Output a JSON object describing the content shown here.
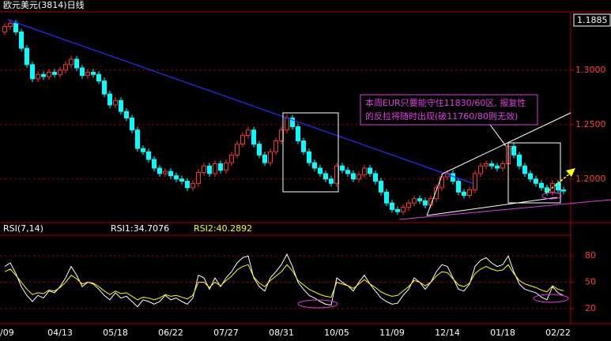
{
  "chart_data": [
    {
      "type": "candlestick",
      "title": "欧元美元(3814)日线",
      "price_box": "1.1885",
      "annotation": [
        "本周EUR只要能守住11830/60区, 报复性",
        "的反拉将随时出现(破11760/80则无效)"
      ],
      "up_color": "#ff3232",
      "down_color": "#00ffff",
      "grid": true,
      "ylim": [
        1.16,
        1.352
      ],
      "yticks": [
        {
          "value": 1.3,
          "label": "1.3000"
        },
        {
          "value": 1.25,
          "label": "1.2500"
        },
        {
          "value": 1.2,
          "label": "1.2000"
        }
      ],
      "open": [
        1.335,
        1.34,
        1.343,
        1.335,
        1.32,
        1.305,
        1.292,
        1.296,
        1.294,
        1.298,
        1.296,
        1.3,
        1.305,
        1.31,
        1.302,
        1.295,
        1.298,
        1.296,
        1.29,
        1.278,
        1.268,
        1.272,
        1.262,
        1.256,
        1.245,
        1.228,
        1.225,
        1.218,
        1.21,
        1.205,
        1.207,
        1.203,
        1.2,
        1.198,
        1.192,
        1.196,
        1.206,
        1.212,
        1.205,
        1.214,
        1.208,
        1.215,
        1.222,
        1.232,
        1.24,
        1.245,
        1.232,
        1.222,
        1.215,
        1.225,
        1.235,
        1.245,
        1.256,
        1.248,
        1.235,
        1.225,
        1.215,
        1.21,
        1.205,
        1.2,
        1.196,
        1.212,
        1.208,
        1.205,
        1.2,
        1.204,
        1.21,
        1.205,
        1.198,
        1.188,
        1.178,
        1.172,
        1.17,
        1.174,
        1.178,
        1.182,
        1.18,
        1.176,
        1.182,
        1.192,
        1.202,
        1.205,
        1.198,
        1.188,
        1.185,
        1.19,
        1.205,
        1.212,
        1.214,
        1.212,
        1.21,
        1.214,
        1.23,
        1.222,
        1.212,
        1.205,
        1.2,
        1.196,
        1.192,
        1.188,
        1.196,
        1.19
      ],
      "high": [
        1.343,
        1.346,
        1.346,
        1.338,
        1.323,
        1.308,
        1.299,
        1.299,
        1.301,
        1.301,
        1.303,
        1.308,
        1.313,
        1.313,
        1.305,
        1.301,
        1.301,
        1.299,
        1.293,
        1.281,
        1.275,
        1.275,
        1.265,
        1.259,
        1.248,
        1.231,
        1.228,
        1.221,
        1.213,
        1.21,
        1.21,
        1.206,
        1.203,
        1.201,
        1.199,
        1.209,
        1.215,
        1.215,
        1.217,
        1.217,
        1.218,
        1.225,
        1.235,
        1.243,
        1.248,
        1.248,
        1.235,
        1.225,
        1.228,
        1.238,
        1.248,
        1.259,
        1.259,
        1.251,
        1.238,
        1.228,
        1.218,
        1.213,
        1.208,
        1.203,
        1.215,
        1.215,
        1.211,
        1.208,
        1.207,
        1.213,
        1.213,
        1.208,
        1.201,
        1.191,
        1.181,
        1.175,
        1.177,
        1.181,
        1.185,
        1.185,
        1.183,
        1.185,
        1.195,
        1.205,
        1.208,
        1.208,
        1.201,
        1.191,
        1.193,
        1.208,
        1.215,
        1.217,
        1.217,
        1.215,
        1.217,
        1.233,
        1.233,
        1.225,
        1.215,
        1.208,
        1.203,
        1.199,
        1.195,
        1.199,
        1.199,
        1.193
      ],
      "low": [
        1.332,
        1.337,
        1.332,
        1.317,
        1.302,
        1.289,
        1.289,
        1.291,
        1.291,
        1.293,
        1.293,
        1.297,
        1.302,
        1.299,
        1.292,
        1.292,
        1.293,
        1.287,
        1.275,
        1.265,
        1.265,
        1.259,
        1.253,
        1.242,
        1.225,
        1.222,
        1.215,
        1.207,
        1.202,
        1.202,
        1.2,
        1.197,
        1.195,
        1.189,
        1.189,
        1.193,
        1.203,
        1.202,
        1.202,
        1.205,
        1.205,
        1.212,
        1.219,
        1.229,
        1.237,
        1.229,
        1.219,
        1.212,
        1.212,
        1.222,
        1.232,
        1.242,
        1.245,
        1.232,
        1.222,
        1.212,
        1.207,
        1.202,
        1.197,
        1.193,
        1.193,
        1.205,
        1.202,
        1.197,
        1.197,
        1.201,
        1.202,
        1.195,
        1.185,
        1.175,
        1.169,
        1.167,
        1.167,
        1.171,
        1.175,
        1.177,
        1.173,
        1.173,
        1.179,
        1.189,
        1.199,
        1.195,
        1.185,
        1.182,
        1.182,
        1.187,
        1.202,
        1.209,
        1.209,
        1.207,
        1.207,
        1.211,
        1.219,
        1.209,
        1.202,
        1.197,
        1.193,
        1.189,
        1.185,
        1.185,
        1.187,
        1.186
      ],
      "close": [
        1.34,
        1.343,
        1.335,
        1.32,
        1.305,
        1.292,
        1.296,
        1.294,
        1.298,
        1.296,
        1.3,
        1.305,
        1.31,
        1.302,
        1.295,
        1.298,
        1.296,
        1.29,
        1.278,
        1.268,
        1.272,
        1.262,
        1.256,
        1.245,
        1.228,
        1.225,
        1.218,
        1.21,
        1.205,
        1.207,
        1.203,
        1.2,
        1.198,
        1.192,
        1.196,
        1.206,
        1.212,
        1.205,
        1.214,
        1.208,
        1.215,
        1.222,
        1.232,
        1.24,
        1.245,
        1.232,
        1.222,
        1.215,
        1.225,
        1.235,
        1.245,
        1.256,
        1.248,
        1.235,
        1.225,
        1.215,
        1.21,
        1.205,
        1.2,
        1.196,
        1.212,
        1.208,
        1.205,
        1.2,
        1.204,
        1.21,
        1.205,
        1.198,
        1.188,
        1.178,
        1.172,
        1.17,
        1.174,
        1.178,
        1.182,
        1.18,
        1.176,
        1.182,
        1.192,
        1.202,
        1.205,
        1.198,
        1.188,
        1.185,
        1.19,
        1.205,
        1.212,
        1.214,
        1.212,
        1.21,
        1.214,
        1.23,
        1.222,
        1.212,
        1.205,
        1.2,
        1.196,
        1.192,
        1.188,
        1.196,
        1.19,
        1.189
      ]
    },
    {
      "type": "line",
      "title": "RSI(7,14)",
      "grid": true,
      "ylim": [
        10,
        100
      ],
      "yticks": [
        80,
        50,
        20
      ],
      "categories": [
        "/09",
        null,
        null,
        null,
        null,
        null,
        null,
        null,
        null,
        null,
        "04/13",
        null,
        null,
        null,
        null,
        null,
        null,
        null,
        null,
        null,
        "05/18",
        null,
        null,
        null,
        null,
        null,
        null,
        null,
        null,
        null,
        "06/22",
        null,
        null,
        null,
        null,
        null,
        null,
        null,
        null,
        null,
        "07/27",
        null,
        null,
        null,
        null,
        null,
        null,
        null,
        null,
        null,
        "08/31",
        null,
        null,
        null,
        null,
        null,
        null,
        null,
        null,
        null,
        "10/05",
        null,
        null,
        null,
        null,
        null,
        null,
        null,
        null,
        null,
        "11/09",
        null,
        null,
        null,
        null,
        null,
        null,
        null,
        null,
        null,
        "12/14",
        null,
        null,
        null,
        null,
        null,
        null,
        null,
        null,
        null,
        "01/18",
        null,
        null,
        null,
        null,
        null,
        null,
        null,
        null,
        null,
        "02/22",
        null
      ],
      "series": [
        {
          "name": "RSI1:34.7076",
          "color": "#ffffff",
          "values": [
            68,
            72,
            60,
            45,
            35,
            28,
            35,
            32,
            40,
            38,
            45,
            55,
            68,
            58,
            45,
            50,
            48,
            42,
            35,
            30,
            38,
            32,
            34,
            28,
            22,
            30,
            28,
            25,
            28,
            35,
            30,
            32,
            28,
            25,
            32,
            58,
            55,
            42,
            55,
            45,
            55,
            62,
            72,
            78,
            80,
            55,
            45,
            40,
            55,
            62,
            70,
            82,
            68,
            50,
            42,
            35,
            32,
            28,
            25,
            24,
            55,
            50,
            46,
            40,
            50,
            58,
            48,
            40,
            32,
            28,
            25,
            26,
            35,
            42,
            55,
            50,
            42,
            50,
            62,
            70,
            68,
            55,
            42,
            40,
            48,
            68,
            75,
            78,
            72,
            68,
            70,
            80,
            62,
            48,
            42,
            40,
            38,
            33,
            30,
            45,
            38,
            34.7076
          ]
        },
        {
          "name": "RSI2:40.2892",
          "color": "#ffff00",
          "values": [
            62,
            65,
            58,
            50,
            42,
            36,
            38,
            37,
            41,
            40,
            44,
            50,
            58,
            54,
            48,
            50,
            49,
            45,
            40,
            36,
            40,
            37,
            38,
            34,
            30,
            33,
            32,
            30,
            32,
            36,
            34,
            35,
            33,
            31,
            35,
            50,
            50,
            44,
            50,
            46,
            52,
            57,
            64,
            68,
            70,
            56,
            49,
            45,
            52,
            57,
            62,
            70,
            63,
            52,
            47,
            42,
            39,
            36,
            34,
            33,
            50,
            48,
            46,
            43,
            48,
            53,
            48,
            44,
            39,
            36,
            34,
            35,
            40,
            45,
            52,
            50,
            46,
            50,
            57,
            62,
            61,
            54,
            47,
            45,
            49,
            60,
            65,
            68,
            65,
            63,
            64,
            70,
            60,
            52,
            48,
            46,
            44,
            41,
            39,
            46,
            42,
            40.2892
          ]
        }
      ]
    }
  ]
}
